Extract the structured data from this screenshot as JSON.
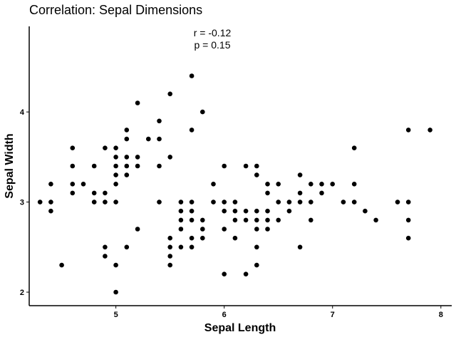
{
  "chart_data": {
    "type": "scatter",
    "title": "Correlation: Sepal Dimensions",
    "xlabel": "Sepal Length",
    "ylabel": "Sepal Width",
    "xlim": [
      4.2,
      8.1
    ],
    "ylim": [
      1.85,
      4.95
    ],
    "xticks": [
      5,
      6,
      7,
      8
    ],
    "yticks": [
      2,
      3,
      4
    ],
    "grid": false,
    "point_color": "#000000",
    "annotations": [
      "r = -0.12",
      "p = 0.15"
    ],
    "points": [
      [
        4.3,
        3.0
      ],
      [
        4.4,
        3.2
      ],
      [
        4.4,
        3.0
      ],
      [
        4.4,
        2.9
      ],
      [
        4.5,
        2.3
      ],
      [
        4.6,
        3.6
      ],
      [
        4.6,
        3.4
      ],
      [
        4.6,
        3.2
      ],
      [
        4.6,
        3.1
      ],
      [
        4.7,
        3.2
      ],
      [
        4.8,
        3.4
      ],
      [
        4.8,
        3.1
      ],
      [
        4.8,
        3.0
      ],
      [
        4.9,
        3.6
      ],
      [
        4.9,
        3.1
      ],
      [
        4.9,
        3.0
      ],
      [
        4.9,
        2.5
      ],
      [
        4.9,
        2.4
      ],
      [
        5.0,
        3.6
      ],
      [
        5.0,
        3.5
      ],
      [
        5.0,
        3.4
      ],
      [
        5.0,
        3.3
      ],
      [
        5.0,
        3.2
      ],
      [
        5.0,
        3.0
      ],
      [
        5.0,
        2.3
      ],
      [
        5.0,
        2.0
      ],
      [
        5.1,
        3.8
      ],
      [
        5.1,
        3.7
      ],
      [
        5.1,
        3.5
      ],
      [
        5.1,
        3.4
      ],
      [
        5.1,
        3.3
      ],
      [
        5.1,
        2.5
      ],
      [
        5.2,
        4.1
      ],
      [
        5.2,
        3.5
      ],
      [
        5.2,
        3.4
      ],
      [
        5.2,
        2.7
      ],
      [
        5.3,
        3.7
      ],
      [
        5.4,
        3.9
      ],
      [
        5.4,
        3.7
      ],
      [
        5.4,
        3.4
      ],
      [
        5.4,
        3.0
      ],
      [
        5.5,
        4.2
      ],
      [
        5.5,
        3.5
      ],
      [
        5.5,
        2.6
      ],
      [
        5.5,
        2.5
      ],
      [
        5.5,
        2.4
      ],
      [
        5.5,
        2.3
      ],
      [
        5.6,
        3.0
      ],
      [
        5.6,
        2.9
      ],
      [
        5.6,
        2.8
      ],
      [
        5.6,
        2.7
      ],
      [
        5.6,
        2.5
      ],
      [
        5.7,
        4.4
      ],
      [
        5.7,
        3.8
      ],
      [
        5.7,
        3.0
      ],
      [
        5.7,
        2.9
      ],
      [
        5.7,
        2.8
      ],
      [
        5.7,
        2.6
      ],
      [
        5.7,
        2.5
      ],
      [
        5.8,
        4.0
      ],
      [
        5.8,
        2.8
      ],
      [
        5.8,
        2.7
      ],
      [
        5.8,
        2.6
      ],
      [
        5.9,
        3.2
      ],
      [
        5.9,
        3.0
      ],
      [
        6.0,
        3.4
      ],
      [
        6.0,
        3.0
      ],
      [
        6.0,
        2.9
      ],
      [
        6.0,
        2.7
      ],
      [
        6.0,
        2.2
      ],
      [
        6.1,
        3.0
      ],
      [
        6.1,
        2.9
      ],
      [
        6.1,
        2.8
      ],
      [
        6.1,
        2.6
      ],
      [
        6.2,
        3.4
      ],
      [
        6.2,
        2.9
      ],
      [
        6.2,
        2.8
      ],
      [
        6.2,
        2.2
      ],
      [
        6.3,
        3.4
      ],
      [
        6.3,
        3.3
      ],
      [
        6.3,
        2.9
      ],
      [
        6.3,
        2.8
      ],
      [
        6.3,
        2.7
      ],
      [
        6.3,
        2.5
      ],
      [
        6.3,
        2.3
      ],
      [
        6.4,
        3.2
      ],
      [
        6.4,
        3.1
      ],
      [
        6.4,
        2.9
      ],
      [
        6.4,
        2.8
      ],
      [
        6.4,
        2.7
      ],
      [
        6.5,
        3.2
      ],
      [
        6.5,
        3.0
      ],
      [
        6.5,
        2.8
      ],
      [
        6.6,
        3.0
      ],
      [
        6.6,
        2.9
      ],
      [
        6.7,
        3.3
      ],
      [
        6.7,
        3.1
      ],
      [
        6.7,
        3.0
      ],
      [
        6.7,
        2.5
      ],
      [
        6.8,
        3.2
      ],
      [
        6.8,
        3.0
      ],
      [
        6.8,
        2.8
      ],
      [
        6.9,
        3.2
      ],
      [
        6.9,
        3.1
      ],
      [
        7.0,
        3.2
      ],
      [
        7.1,
        3.0
      ],
      [
        7.2,
        3.6
      ],
      [
        7.2,
        3.2
      ],
      [
        7.2,
        3.0
      ],
      [
        7.3,
        2.9
      ],
      [
        7.4,
        2.8
      ],
      [
        7.6,
        3.0
      ],
      [
        7.7,
        3.8
      ],
      [
        7.7,
        3.0
      ],
      [
        7.7,
        2.8
      ],
      [
        7.7,
        2.6
      ],
      [
        7.9,
        3.8
      ]
    ]
  }
}
